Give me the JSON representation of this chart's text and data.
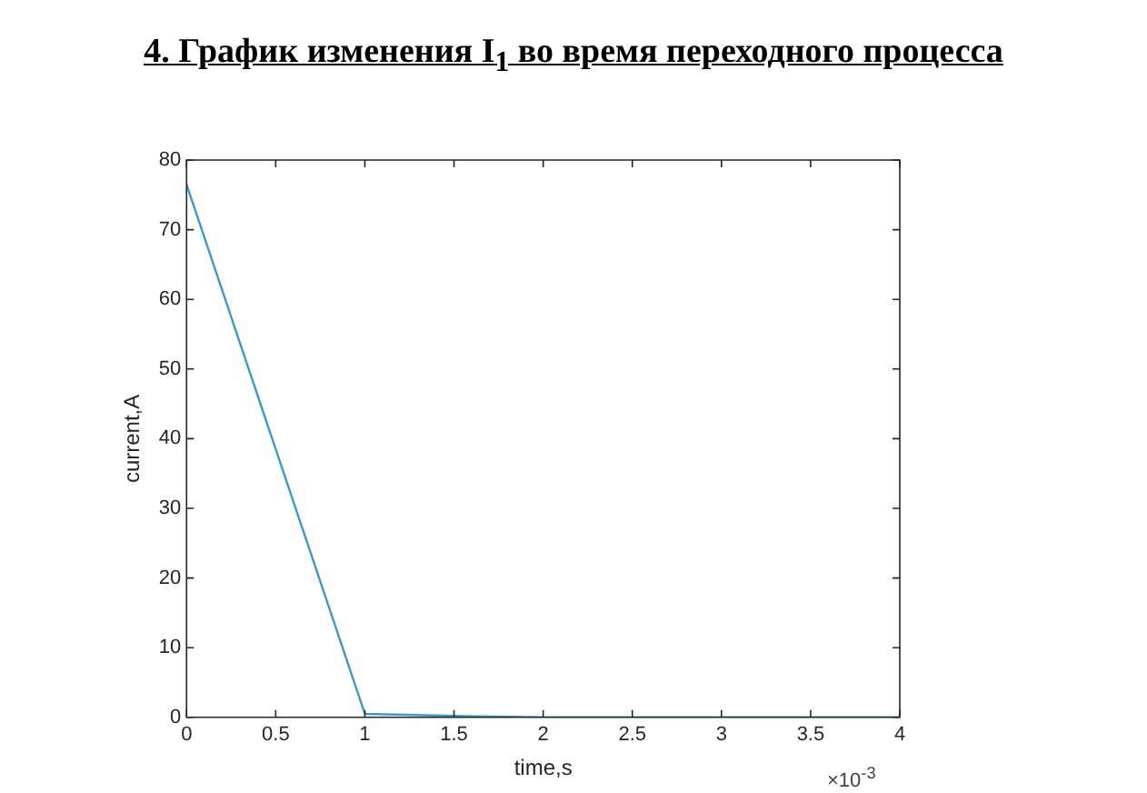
{
  "chart_data": {
    "type": "line",
    "title": "4. График изменения I$_{1}$ во время переходного процесса",
    "xlabel": "time,s",
    "ylabel": "current,A",
    "x": [
      0,
      1,
      1.5,
      2,
      4
    ],
    "series": [
      {
        "color": "#3a9ac9",
        "values": [
          76.5,
          0.5,
          0.2,
          0,
          0
        ]
      }
    ],
    "xlim": [
      0,
      4
    ],
    "xticks": [
      0,
      0.5,
      1,
      1.5,
      2,
      2.5,
      3,
      3.5,
      4
    ],
    "ylim": [
      0,
      80
    ],
    "yticks": [
      0,
      10,
      20,
      30,
      40,
      50,
      60,
      70,
      80
    ],
    "annotations": [
      "×10$^{-3}$"
    ],
    "grid": false,
    "legend": false,
    "marker": "none",
    "line_style": "solid"
  }
}
